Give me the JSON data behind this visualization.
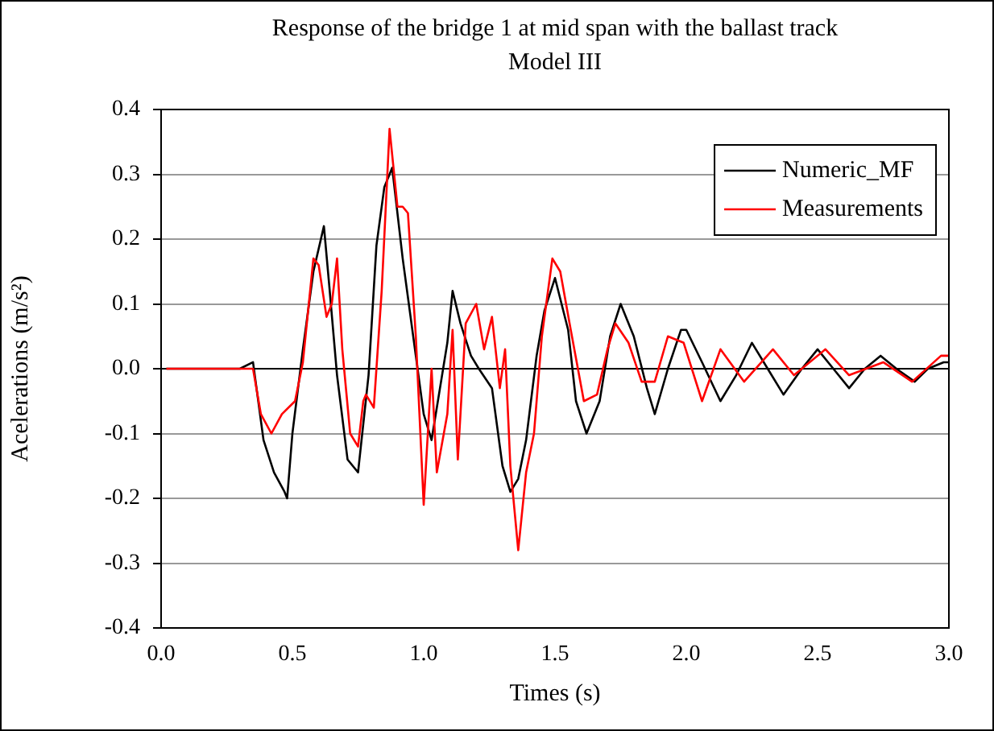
{
  "chart_data": {
    "type": "line",
    "title": "Response of the bridge 1 at mid span with the ballast track Model III",
    "xlabel": "Times (s)",
    "ylabel": "Acelerations (m/s²)",
    "xlim": [
      0,
      3
    ],
    "xticks": [
      {
        "value": 0,
        "label": "0.0"
      },
      0.5,
      {
        "value": 1,
        "label": "1.0"
      },
      1.5,
      {
        "value": 2,
        "label": "2.0"
      },
      2.5,
      {
        "value": 3,
        "label": "3.0"
      }
    ],
    "ylim": [
      -0.4,
      0.4
    ],
    "yticks": [
      -0.4,
      -0.3,
      -0.2,
      -0.1,
      {
        "value": 0,
        "label": "0.0"
      },
      0.1,
      0.2,
      0.3,
      0.4
    ],
    "grid": "y",
    "legend": "top right",
    "marker": "none",
    "line_style": "solid",
    "series": [
      {
        "name": "Numeric_MF",
        "color": "#000000",
        "x": [
          0.02,
          0.1,
          0.2,
          0.3,
          0.35,
          0.39,
          0.43,
          0.47,
          0.48,
          0.5,
          0.54,
          0.58,
          0.62,
          0.64,
          0.67,
          0.71,
          0.75,
          0.79,
          0.82,
          0.85,
          0.88,
          0.92,
          0.97,
          1.0,
          1.03,
          1.09,
          1.11,
          1.14,
          1.18,
          1.21,
          1.26,
          1.3,
          1.33,
          1.36,
          1.39,
          1.43,
          1.46,
          1.5,
          1.55,
          1.58,
          1.62,
          1.67,
          1.71,
          1.75,
          1.8,
          1.85,
          1.88,
          1.93,
          1.98,
          2.0,
          2.06,
          2.13,
          2.19,
          2.25,
          2.31,
          2.37,
          2.44,
          2.5,
          2.56,
          2.62,
          2.68,
          2.74,
          2.8,
          2.87,
          2.92,
          2.98,
          3.0
        ],
        "values": [
          0,
          0,
          0,
          0,
          0.01,
          -0.11,
          -0.16,
          -0.19,
          -0.2,
          -0.1,
          0.03,
          0.15,
          0.22,
          0.13,
          -0.01,
          -0.14,
          -0.16,
          -0.01,
          0.19,
          0.28,
          0.31,
          0.17,
          0.02,
          -0.07,
          -0.11,
          0.04,
          0.12,
          0.07,
          0.02,
          0,
          -0.03,
          -0.15,
          -0.19,
          -0.17,
          -0.11,
          0.02,
          0.09,
          0.14,
          0.06,
          -0.05,
          -0.1,
          -0.05,
          0.05,
          0.1,
          0.05,
          -0.03,
          -0.07,
          0,
          0.06,
          0.06,
          0.01,
          -0.05,
          -0.01,
          0.04,
          0,
          -0.04,
          0,
          0.03,
          0,
          -0.03,
          0,
          0.02,
          0,
          -0.02,
          0,
          0.01,
          0.01
        ]
      },
      {
        "name": "Measurements",
        "color": "#ff0000",
        "x": [
          0.02,
          0.1,
          0.2,
          0.3,
          0.35,
          0.38,
          0.42,
          0.46,
          0.51,
          0.54,
          0.58,
          0.6,
          0.63,
          0.65,
          0.67,
          0.69,
          0.72,
          0.75,
          0.77,
          0.78,
          0.81,
          0.84,
          0.87,
          0.9,
          0.92,
          0.94,
          0.97,
          1.0,
          1.03,
          1.05,
          1.09,
          1.11,
          1.13,
          1.16,
          1.2,
          1.23,
          1.26,
          1.29,
          1.31,
          1.33,
          1.36,
          1.39,
          1.42,
          1.45,
          1.49,
          1.52,
          1.56,
          1.61,
          1.66,
          1.7,
          1.73,
          1.78,
          1.83,
          1.88,
          1.93,
          1.99,
          2.06,
          2.13,
          2.22,
          2.33,
          2.41,
          2.53,
          2.62,
          2.75,
          2.86,
          2.97,
          3.0
        ],
        "values": [
          0,
          0,
          0,
          0,
          0,
          -0.07,
          -0.1,
          -0.07,
          -0.05,
          0.01,
          0.17,
          0.16,
          0.08,
          0.1,
          0.17,
          0.03,
          -0.1,
          -0.12,
          -0.05,
          -0.04,
          -0.06,
          0.12,
          0.37,
          0.25,
          0.25,
          0.24,
          0.05,
          -0.21,
          0,
          -0.16,
          -0.07,
          0.06,
          -0.14,
          0.07,
          0.1,
          0.03,
          0.08,
          -0.03,
          0.03,
          -0.15,
          -0.28,
          -0.16,
          -0.1,
          0.05,
          0.17,
          0.15,
          0.06,
          -0.05,
          -0.04,
          0.03,
          0.07,
          0.04,
          -0.02,
          -0.02,
          0.05,
          0.04,
          -0.05,
          0.03,
          -0.02,
          0.03,
          -0.01,
          0.03,
          -0.01,
          0.01,
          -0.02,
          0.02,
          0.02
        ]
      }
    ]
  }
}
